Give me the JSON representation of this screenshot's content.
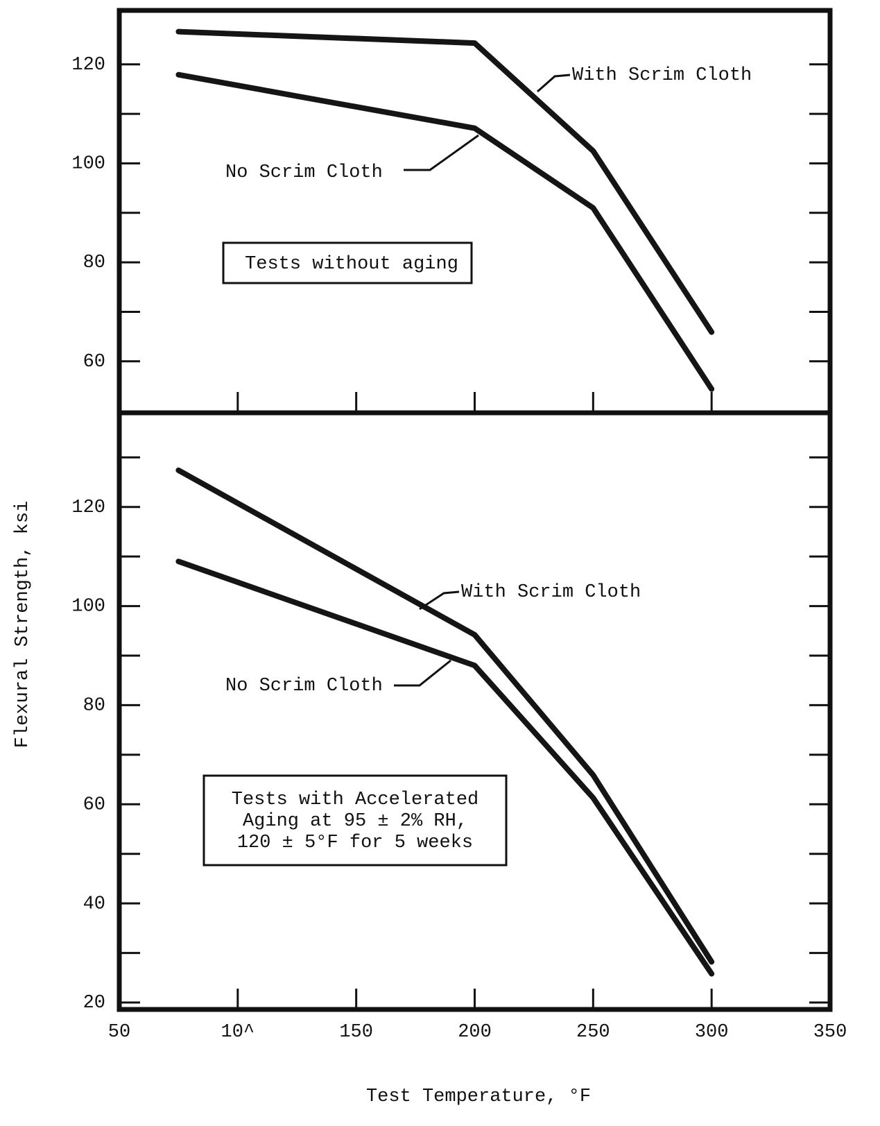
{
  "chart_data": [
    {
      "type": "line",
      "x": [
        75,
        200,
        250,
        300
      ],
      "series": [
        {
          "name": "With Scrim Cloth",
          "color": "#151515",
          "values": [
            126.6,
            124.3,
            102.5,
            65.9
          ]
        },
        {
          "name": "No Scrim Cloth",
          "color": "#151515",
          "values": [
            117.9,
            107.1,
            91.0,
            54.4
          ]
        }
      ],
      "xlim": [
        50,
        350
      ],
      "xticks": [
        100,
        150,
        200,
        250,
        300
      ],
      "show_xtick_labels": false,
      "ylim": [
        49.6,
        130.9
      ],
      "yticks": [
        60,
        80,
        100,
        120
      ],
      "yminorticks": [
        70,
        90,
        110
      ],
      "box_text": [
        "Tests without aging"
      ]
    },
    {
      "type": "line",
      "x": [
        75,
        200,
        250,
        300
      ],
      "series": [
        {
          "name": "With Scrim Cloth",
          "color": "#151515",
          "values": [
            127.4,
            94.2,
            65.9,
            28.2
          ]
        },
        {
          "name": "No Scrim Cloth",
          "color": "#151515",
          "values": [
            109.0,
            88.0,
            61.3,
            25.8
          ]
        }
      ],
      "xlim": [
        50,
        350
      ],
      "xticks": [
        50,
        {
          "value": 100,
          "label": "10^"
        },
        150,
        200,
        250,
        300,
        350
      ],
      "show_xtick_labels": true,
      "ylim": [
        18.6,
        139.0
      ],
      "yticks": [
        20,
        40,
        60,
        80,
        100,
        120
      ],
      "yminorticks": [
        30,
        50,
        70,
        90,
        110,
        130
      ],
      "box_text": [
        "Tests with Accelerated",
        "Aging at 95 ± 2% RH,",
        "120 ± 5°F for 5 weeks"
      ],
      "xlabel": "Test Temperature, °F",
      "ylabel": "Flexural Strength, ksi"
    }
  ]
}
